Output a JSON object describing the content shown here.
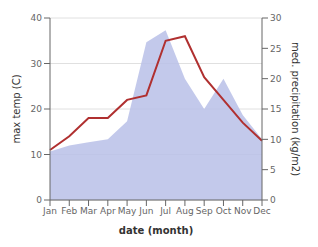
{
  "chart_data": {
    "type": "line",
    "xlabel": "date (month)",
    "ylabel": "max temp (C)",
    "y2label": "med. precipitation (kg/m2)",
    "categories": [
      "Jan",
      "Feb",
      "Mar",
      "Apr",
      "May",
      "Jun",
      "Jul",
      "Aug",
      "Sep",
      "Oct",
      "Nov",
      "Dec"
    ],
    "series": [
      {
        "name": "precip",
        "type": "area",
        "axis": "y2",
        "color": "#b8c0e8",
        "values": [
          8,
          9,
          9.5,
          10,
          13,
          26,
          28,
          20,
          15,
          20,
          14,
          10
        ]
      },
      {
        "name": "temp",
        "type": "line",
        "color": "#b03030",
        "values": [
          11,
          14,
          18,
          18,
          22,
          23,
          35,
          36,
          27,
          22,
          17,
          13
        ]
      }
    ],
    "ylim": [
      0,
      40
    ],
    "yticks": [
      0,
      10,
      20,
      30,
      40
    ],
    "y2lim": [
      0,
      30
    ],
    "y2ticks": [
      0,
      5,
      10,
      15,
      20,
      25,
      30
    ],
    "grid": true
  }
}
